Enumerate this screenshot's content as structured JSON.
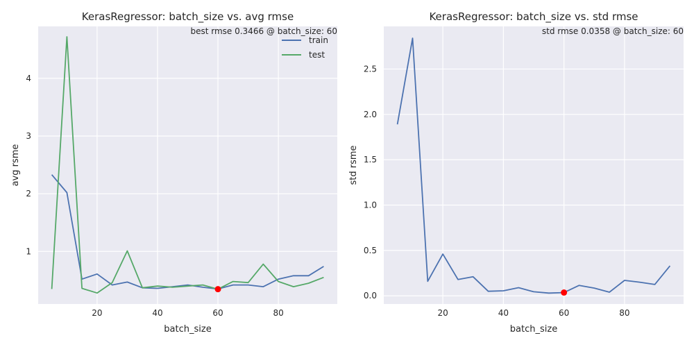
{
  "chart_data": [
    {
      "type": "line",
      "title": "KerasRegressor: batch_size vs. avg rmse",
      "xlabel": "batch_size",
      "ylabel": "avg rsme",
      "xlim": [
        0.5,
        99.5
      ],
      "ylim": [
        0.09,
        4.9
      ],
      "xticks": [
        20,
        40,
        60,
        80
      ],
      "yticks": [
        1,
        2,
        3,
        4
      ],
      "grid": true,
      "legend_position": "top-right",
      "annotation": "best rmse 0.3466 @ batch_size: 60",
      "highlight_point": {
        "x": 60,
        "y": 0.3466,
        "color": "#ff0000"
      },
      "x": [
        5,
        10,
        15,
        20,
        25,
        30,
        35,
        40,
        45,
        50,
        55,
        60,
        65,
        70,
        75,
        80,
        85,
        90,
        95
      ],
      "series": [
        {
          "name": "train",
          "color": "#4c72b0",
          "values": [
            2.33,
            2.02,
            0.52,
            0.61,
            0.42,
            0.47,
            0.37,
            0.36,
            0.39,
            0.42,
            0.38,
            0.35,
            0.42,
            0.42,
            0.39,
            0.52,
            0.58,
            0.58,
            0.74
          ]
        },
        {
          "name": "test",
          "color": "#55a868",
          "values": [
            0.35,
            4.72,
            0.36,
            0.28,
            0.46,
            1.01,
            0.37,
            0.4,
            0.38,
            0.4,
            0.42,
            0.3466,
            0.48,
            0.46,
            0.78,
            0.48,
            0.39,
            0.45,
            0.55
          ]
        }
      ]
    },
    {
      "type": "line",
      "title": "KerasRegressor: batch_size vs. std rmse",
      "xlabel": "batch_size",
      "ylabel": "std rsme",
      "xlim": [
        0.5,
        99.5
      ],
      "ylim": [
        -0.09,
        2.97
      ],
      "xticks": [
        20,
        40,
        60,
        80
      ],
      "yticks": [
        0.0,
        0.5,
        1.0,
        1.5,
        2.0,
        2.5
      ],
      "ytick_labels": [
        "0.0",
        "0.5",
        "1.0",
        "1.5",
        "2.0",
        "2.5"
      ],
      "grid": true,
      "annotation": "std rmse 0.0358 @ batch_size: 60",
      "highlight_point": {
        "x": 60,
        "y": 0.0358,
        "color": "#ff0000"
      },
      "x": [
        5,
        10,
        15,
        20,
        25,
        30,
        35,
        40,
        45,
        50,
        55,
        60,
        65,
        70,
        75,
        80,
        85,
        90,
        95
      ],
      "series": [
        {
          "color": "#4c72b0",
          "values": [
            1.89,
            2.84,
            0.16,
            0.46,
            0.18,
            0.21,
            0.05,
            0.055,
            0.09,
            0.045,
            0.03,
            0.0358,
            0.115,
            0.085,
            0.04,
            0.17,
            0.15,
            0.125,
            0.33
          ]
        }
      ]
    }
  ]
}
